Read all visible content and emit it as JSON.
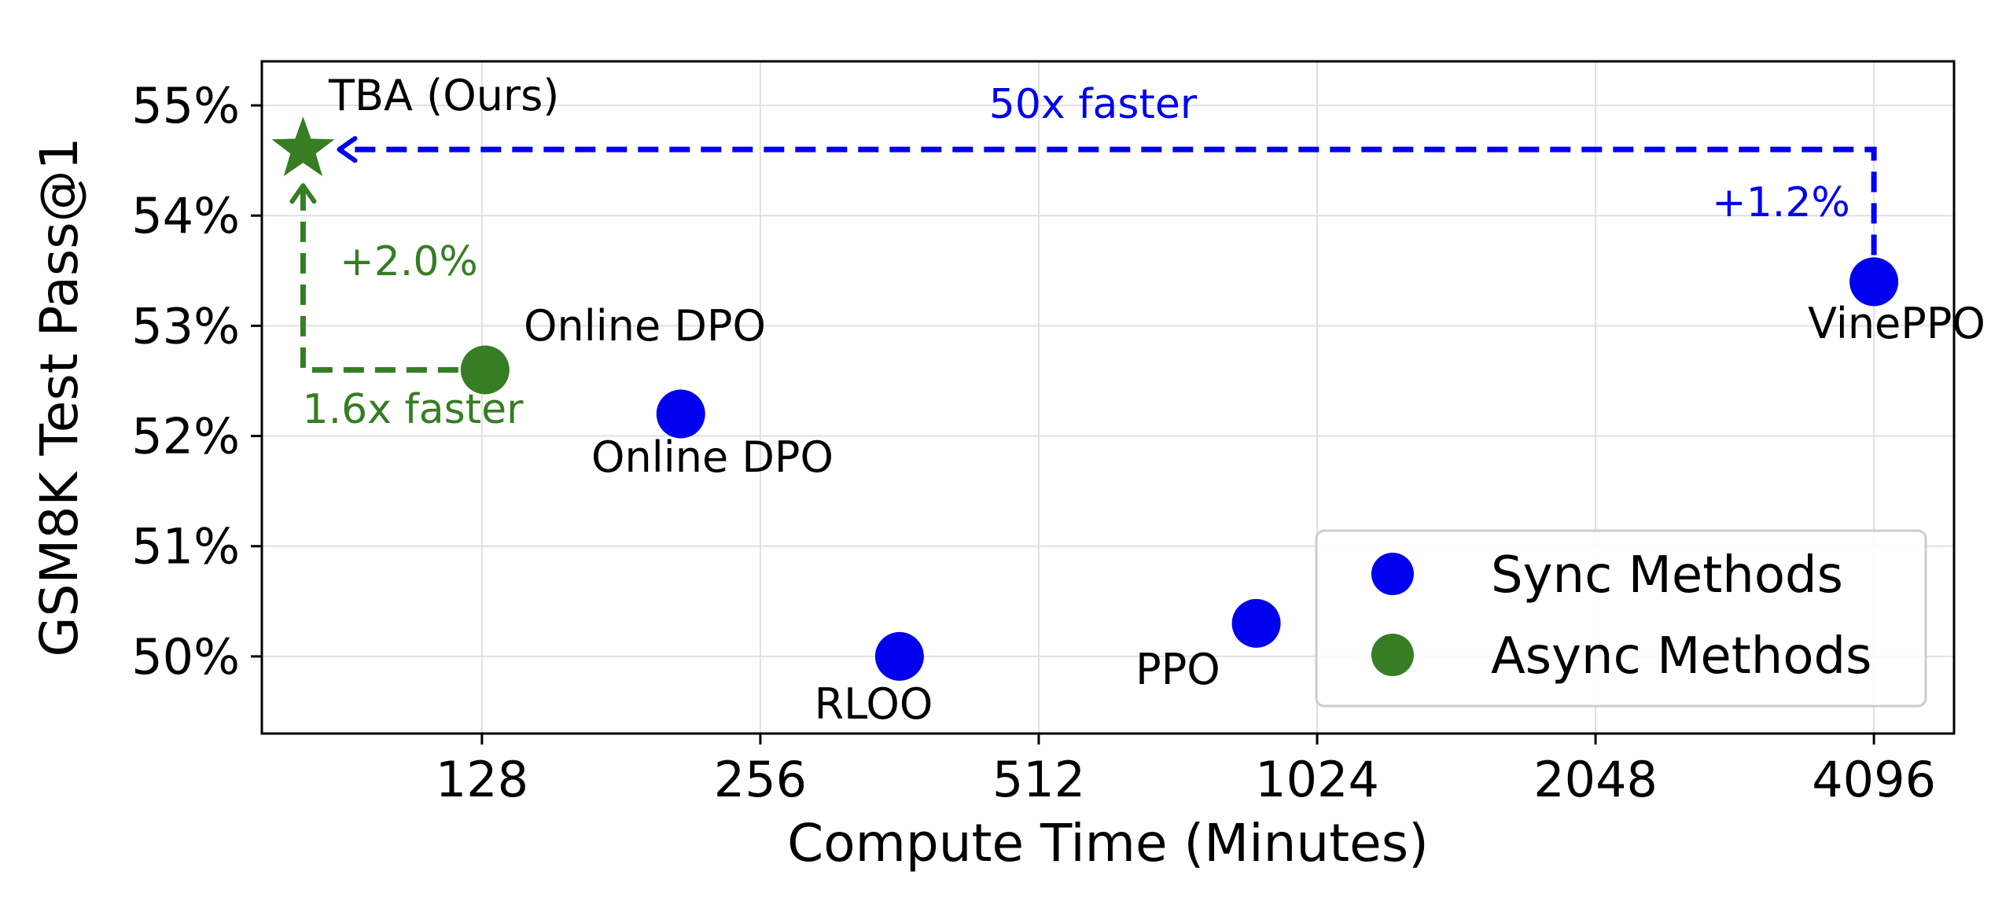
{
  "chart_data": {
    "type": "scatter",
    "title": "",
    "xlabel": "Compute Time (Minutes)",
    "ylabel": "GSM8K Test Pass@1",
    "x_scale": "log2",
    "xlim": [
      74,
      5000
    ],
    "ylim": [
      49.3,
      55.4
    ],
    "x_ticks": [
      128,
      256,
      512,
      1024,
      2048,
      4096
    ],
    "x_tick_labels": [
      "128",
      "256",
      "512",
      "1024",
      "2048",
      "4096"
    ],
    "y_ticks": [
      50,
      51,
      52,
      53,
      54,
      55
    ],
    "y_tick_labels": [
      "50%",
      "51%",
      "52%",
      "53%",
      "54%",
      "55%"
    ],
    "grid": true,
    "legend_position": "lower-right",
    "series": [
      {
        "name": "Sync Methods",
        "color": "#0000ee",
        "marker": "circle",
        "points": [
          {
            "label": "Online DPO",
            "x": 210,
            "y": 52.2
          },
          {
            "label": "RLOO",
            "x": 362,
            "y": 50.0
          },
          {
            "label": "PPO",
            "x": 880,
            "y": 50.3
          },
          {
            "label": "VinePPO",
            "x": 4096,
            "y": 53.4
          }
        ]
      },
      {
        "name": "Async Methods",
        "color": "#367d23",
        "marker": "circle",
        "points": [
          {
            "label": "Online DPO",
            "x": 129,
            "y": 52.6
          }
        ]
      }
    ],
    "highlight": {
      "label": "TBA (Ours)",
      "x": 82,
      "y": 54.6,
      "marker": "star",
      "color": "#367d23"
    },
    "annotations": [
      {
        "text": "50x faster",
        "color": "#0000ee"
      },
      {
        "text": "+1.2%",
        "color": "#0000ee"
      },
      {
        "text": "+2.0%",
        "color": "#367d23"
      },
      {
        "text": "1.6x faster",
        "color": "#367d23"
      }
    ]
  }
}
